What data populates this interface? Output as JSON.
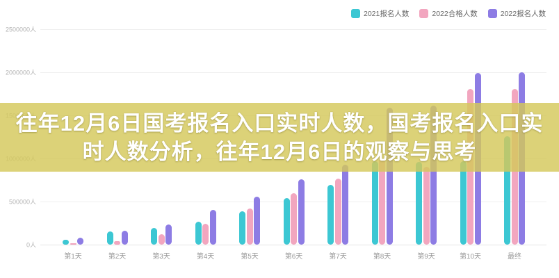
{
  "page": {
    "background": "#ffffff"
  },
  "legend": {
    "items": [
      {
        "label": "2021报名人数",
        "color": "#3cc7d3"
      },
      {
        "label": "2022合格人数",
        "color": "#f2a6bf"
      },
      {
        "label": "2022报名人数",
        "color": "#8d7ce4"
      }
    ]
  },
  "overlay": {
    "band_color": "rgba(212,200,90,0.82)",
    "line1": "往年12月6日国考报名入口实时人数，国考报名入口实",
    "line2": "时人数分析，往年12月6日的观察与思考"
  },
  "chart_data": {
    "type": "bar",
    "title": "",
    "xlabel": "",
    "ylabel": "人",
    "categories": [
      "第1天",
      "第2天",
      "第3天",
      "第4天",
      "第5天",
      "第6天",
      "第7天",
      "第8天",
      "第9天",
      "第10天",
      "最终"
    ],
    "series": [
      {
        "name": "2021报名人数",
        "color": "#3cc7d3",
        "values": [
          60000,
          150000,
          190000,
          270000,
          390000,
          540000,
          690000,
          970000,
          960000,
          970000,
          1260000
        ]
      },
      {
        "name": "2022合格人数",
        "color": "#f2a6bf",
        "values": [
          10000,
          40000,
          120000,
          240000,
          420000,
          600000,
          770000,
          990000,
          900000,
          1810000,
          1810000
        ]
      },
      {
        "name": "2022报名人数",
        "color": "#8d7ce4",
        "values": [
          80000,
          160000,
          230000,
          400000,
          560000,
          760000,
          930000,
          1590000,
          1610000,
          1990000,
          2000000
        ]
      }
    ],
    "ylim": [
      0,
      2500000
    ],
    "y_ticks": [
      {
        "value": 0,
        "label": "0人"
      },
      {
        "value": 500000,
        "label": "500000人"
      },
      {
        "value": 1000000,
        "label": "1000000人"
      },
      {
        "value": 1500000,
        "label": "1500000人"
      },
      {
        "value": 2000000,
        "label": "2000000人"
      },
      {
        "value": 2500000,
        "label": "2500000人"
      }
    ],
    "grid": true,
    "legend_position": "top-right"
  }
}
